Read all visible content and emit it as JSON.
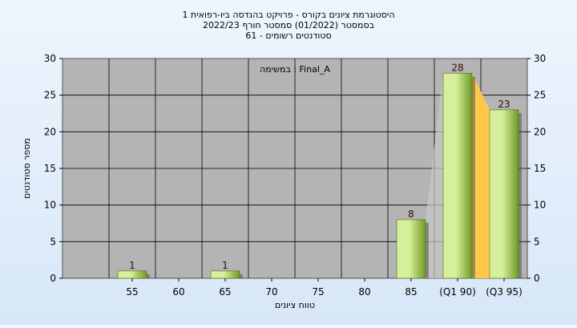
{
  "chart_data": {
    "type": "bar",
    "title_lines": [
      "היסטוגרמת ציונים בקורס - פרויקט בהנדסה ביו-רפואית 1",
      "בסמסטר  (01/2022)  סמסטר חורף 2022/23",
      "סטודנטים רשומים - 61"
    ],
    "annotation": "במשימה : Final_A",
    "xlabel": "טווח ציונים",
    "ylabel": "מספר סטודנטים",
    "categories": [
      "55",
      "60",
      "65",
      "70",
      "75",
      "80",
      "85",
      "(Q1 90)",
      "(Q3 95)"
    ],
    "values": [
      1,
      0,
      1,
      0,
      0,
      0,
      8,
      28,
      23
    ],
    "data_labels": [
      "1",
      "",
      "1",
      "",
      "",
      "",
      "8",
      "28",
      "23"
    ],
    "ylim": [
      0,
      30
    ],
    "yticks": [
      0,
      5,
      10,
      15,
      20,
      25,
      30
    ],
    "grid": true,
    "interquartile_band": {
      "from": "(Q1 90)",
      "to": "(Q3 95)",
      "color": "#ffc84a"
    },
    "colors": {
      "plot_background": "#b4b4b4",
      "bar_light": "#d6ef9a",
      "bar_dark": "#6f9a22",
      "gridline": "#000000"
    }
  }
}
